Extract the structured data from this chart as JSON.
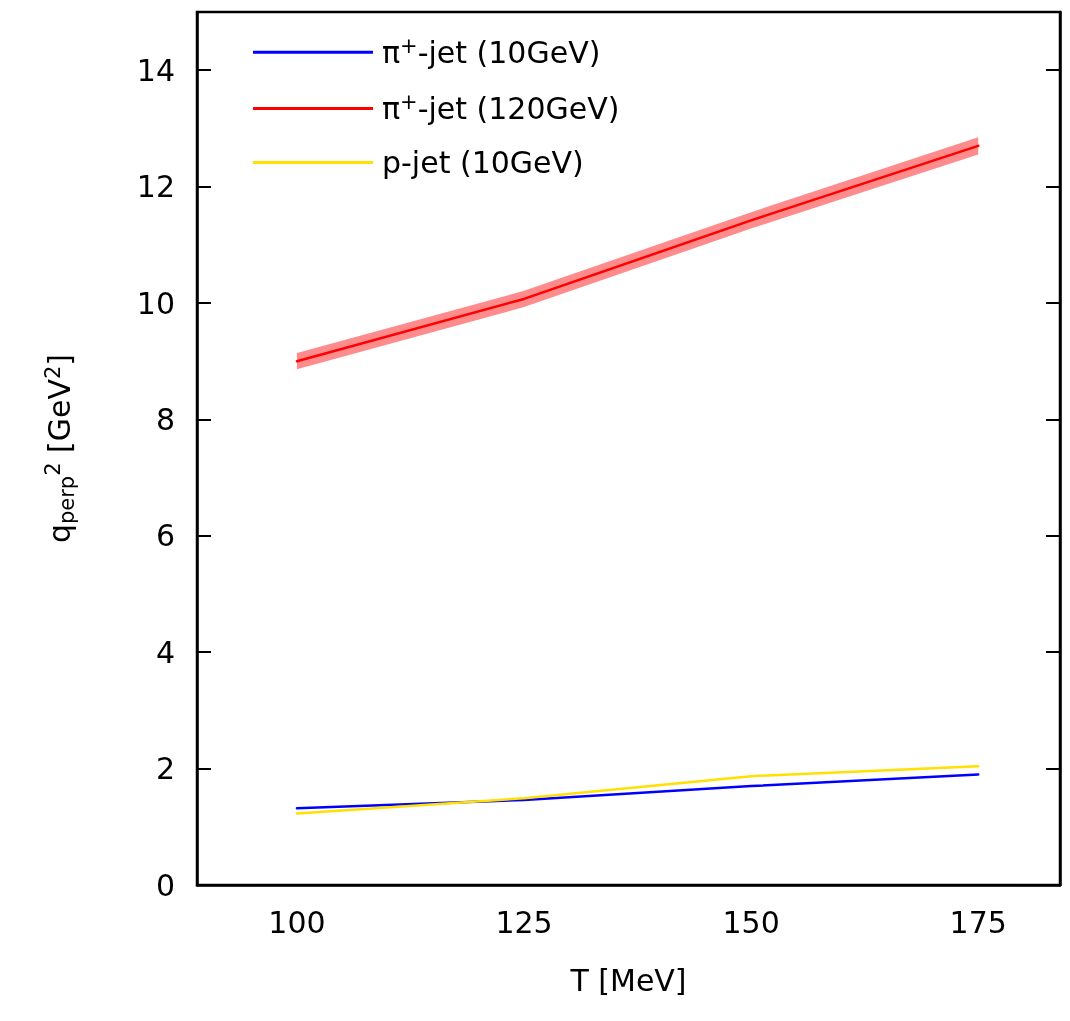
{
  "chart_data": {
    "type": "line",
    "xlabel": "T [MeV]",
    "ylabel": "q$_{perp}$$^{2}$ [GeV$^{2}$]",
    "x": [
      100,
      125,
      150,
      175
    ],
    "series": [
      {
        "name": "π$^{+}$-jet (10GeV)",
        "color": "#0000ff",
        "values": [
          1.32,
          1.46,
          1.7,
          1.9
        ]
      },
      {
        "name": "π$^{+}$-jet (120GeV)",
        "color": "#ff0000",
        "values": [
          9.0,
          10.07,
          11.42,
          12.7
        ],
        "lower": [
          8.86,
          9.93,
          11.28,
          12.55
        ],
        "upper": [
          9.14,
          10.21,
          11.56,
          12.85
        ]
      },
      {
        "name": "p-jet (10GeV)",
        "color": "#ffe000",
        "values": [
          1.23,
          1.49,
          1.87,
          2.04
        ]
      }
    ],
    "xlim": [
      89,
      184
    ],
    "ylim": [
      0,
      15
    ],
    "xticks": [
      100,
      125,
      150,
      175
    ],
    "yticks": [
      0,
      2,
      4,
      6,
      8,
      10,
      12,
      14
    ],
    "legend": "top left",
    "grid": false,
    "marker": "none",
    "line_style": "solid"
  }
}
